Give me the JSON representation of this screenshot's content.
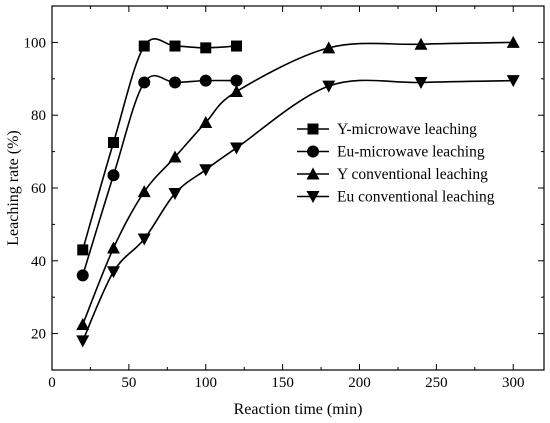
{
  "chart_data": {
    "type": "line",
    "xlabel": "Reaction time (min)",
    "ylabel": "Leaching rate (%)",
    "xlim": [
      0,
      320
    ],
    "ylim": [
      10,
      110
    ],
    "xticks": [
      0,
      50,
      100,
      150,
      200,
      250,
      300
    ],
    "yticks": [
      20,
      40,
      60,
      80,
      100
    ],
    "grid": false,
    "legend_position": "center-right",
    "series": [
      {
        "name": "Y-microwave leaching",
        "marker": "square",
        "x": [
          20,
          40,
          60,
          80,
          100,
          120
        ],
        "values": [
          43,
          72.5,
          99,
          99,
          98.5,
          99
        ]
      },
      {
        "name": "Eu-microwave leaching",
        "marker": "circle",
        "x": [
          20,
          40,
          60,
          80,
          100,
          120
        ],
        "values": [
          36,
          63.5,
          89,
          89,
          89.5,
          89.5
        ]
      },
      {
        "name": "Y conventional leaching",
        "marker": "triangle-up",
        "x": [
          20,
          40,
          60,
          80,
          100,
          120,
          180,
          240,
          300
        ],
        "values": [
          22.5,
          43.5,
          59,
          68.5,
          78,
          86.5,
          98.5,
          99.5,
          100
        ]
      },
      {
        "name": "Eu conventional leaching",
        "marker": "triangle-down",
        "x": [
          20,
          40,
          60,
          80,
          100,
          120,
          180,
          240,
          300
        ],
        "values": [
          18,
          37,
          46,
          58.5,
          65,
          71,
          88,
          89,
          89.5
        ]
      }
    ]
  }
}
